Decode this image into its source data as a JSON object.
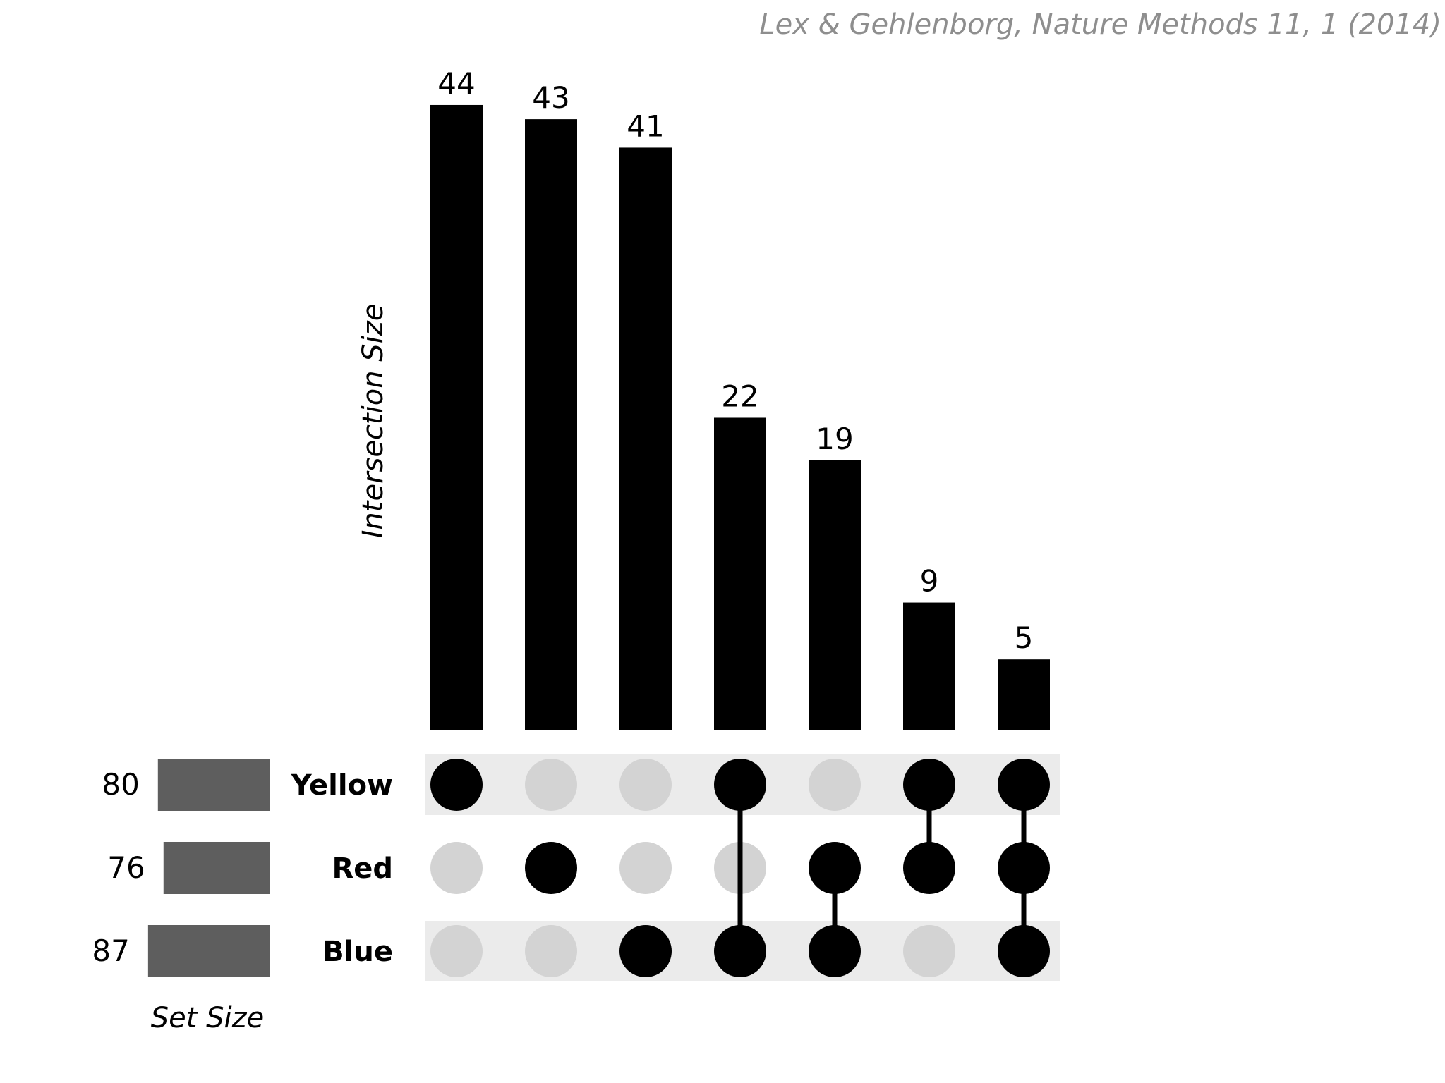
{
  "citation": "Lex & Gehlenborg, Nature Methods 11, 1 (2014)",
  "colors": {
    "bar": "#000000",
    "set_bar": "#5e5e5e",
    "dot_on": "#000000",
    "dot_off": "#d3d3d3",
    "row_band": "#ebebeb",
    "citation": "#8e8e8e"
  },
  "chart_data": {
    "type": "bar",
    "subtype": "upset",
    "ylabel": "Intersection Size",
    "set_size_label": "Set Size",
    "sets": [
      {
        "name": "Yellow",
        "size": 80,
        "banded": true
      },
      {
        "name": "Red",
        "size": 76,
        "banded": false
      },
      {
        "name": "Blue",
        "size": 87,
        "banded": true
      }
    ],
    "intersections": [
      {
        "sets": [
          "Yellow"
        ],
        "size": 44
      },
      {
        "sets": [
          "Red"
        ],
        "size": 43
      },
      {
        "sets": [
          "Blue"
        ],
        "size": 41
      },
      {
        "sets": [
          "Yellow",
          "Blue"
        ],
        "size": 22
      },
      {
        "sets": [
          "Red",
          "Blue"
        ],
        "size": 19
      },
      {
        "sets": [
          "Yellow",
          "Red"
        ],
        "size": 9
      },
      {
        "sets": [
          "Yellow",
          "Red",
          "Blue"
        ],
        "size": 5
      }
    ]
  }
}
